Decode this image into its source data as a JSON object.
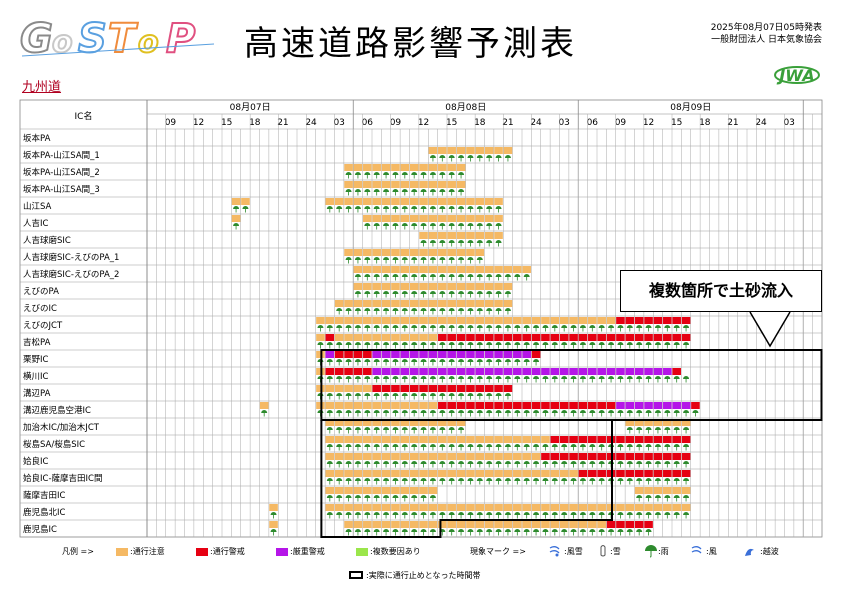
{
  "header": {
    "logo_text": "GoSToP",
    "title": "高速道路影響予測表",
    "issued": "2025年08月07日05時発表",
    "organization": "一般財団法人 日本気象協会",
    "org_logo_text": "JWA",
    "route_name": "九州道"
  },
  "colors": {
    "caution": "#f5b964",
    "warning": "#e60012",
    "severe": "#b515e8",
    "multiple": "#9be64b",
    "grid_line": "#aaaaaa",
    "header_bg": "#ffffff",
    "umbrella": "#2e8b2e"
  },
  "table": {
    "ic_header": "IC名",
    "dates": [
      "08月07日",
      "08月08日",
      "08月09日"
    ],
    "hours": [
      "09",
      "12",
      "15",
      "18",
      "21",
      "24",
      "03",
      "06",
      "09",
      "12",
      "15",
      "18",
      "21",
      "24",
      "03",
      "06",
      "09",
      "12",
      "15",
      "18",
      "21",
      "24",
      "03"
    ],
    "rows": [
      {
        "name": "坂本PA",
        "rain": [],
        "caution": [],
        "warning": [],
        "severe": []
      },
      {
        "name": "坂本PA-山江SA間_1",
        "rain": [
          [
            30,
            38
          ]
        ],
        "caution": [
          [
            30,
            38
          ]
        ],
        "warning": [],
        "severe": []
      },
      {
        "name": "坂本PA-山江SA間_2",
        "rain": [
          [
            21,
            33
          ]
        ],
        "caution": [
          [
            21,
            33
          ]
        ],
        "warning": [],
        "severe": []
      },
      {
        "name": "坂本PA-山江SA間_3",
        "rain": [
          [
            21,
            33
          ]
        ],
        "caution": [
          [
            21,
            33
          ]
        ],
        "warning": [],
        "severe": []
      },
      {
        "name": "山江SA",
        "rain": [
          [
            9,
            10
          ],
          [
            19,
            37
          ]
        ],
        "caution": [
          [
            9,
            10
          ],
          [
            19,
            37
          ]
        ],
        "warning": [],
        "severe": []
      },
      {
        "name": "人吉IC",
        "rain": [
          [
            9,
            9
          ],
          [
            23,
            37
          ]
        ],
        "caution": [
          [
            9,
            9
          ],
          [
            23,
            37
          ]
        ],
        "warning": [],
        "severe": []
      },
      {
        "name": "人吉球磨SIC",
        "rain": [
          [
            29,
            37
          ]
        ],
        "caution": [
          [
            29,
            37
          ]
        ],
        "warning": [],
        "severe": []
      },
      {
        "name": "人吉球磨SIC-えびのPA_1",
        "rain": [
          [
            21,
            35
          ]
        ],
        "caution": [
          [
            21,
            35
          ]
        ],
        "warning": [],
        "severe": []
      },
      {
        "name": "人吉球磨SIC-えびのPA_2",
        "rain": [
          [
            22,
            40
          ]
        ],
        "caution": [
          [
            22,
            40
          ]
        ],
        "warning": [],
        "severe": []
      },
      {
        "name": "えびのPA",
        "rain": [
          [
            22,
            38
          ]
        ],
        "caution": [
          [
            22,
            38
          ]
        ],
        "warning": [],
        "severe": []
      },
      {
        "name": "えびのIC",
        "rain": [
          [
            20,
            38
          ]
        ],
        "caution": [
          [
            20,
            38
          ]
        ],
        "warning": [],
        "severe": []
      },
      {
        "name": "えびのJCT",
        "rain": [
          [
            18,
            57
          ]
        ],
        "caution": [
          [
            18,
            49
          ]
        ],
        "warning": [
          [
            50,
            57
          ]
        ],
        "severe": []
      },
      {
        "name": "吉松PA",
        "rain": [
          [
            18,
            57
          ]
        ],
        "caution": [
          [
            18,
            30
          ]
        ],
        "warning": [
          [
            19,
            19
          ],
          [
            31,
            57
          ]
        ],
        "severe": []
      },
      {
        "name": "栗野IC",
        "rain": [
          [
            18,
            41
          ]
        ],
        "caution": [
          [
            18,
            18
          ]
        ],
        "warning": [
          [
            20,
            23
          ],
          [
            41,
            41
          ]
        ],
        "severe": [
          [
            19,
            19
          ],
          [
            24,
            40
          ]
        ]
      },
      {
        "name": "横川IC",
        "rain": [
          [
            18,
            57
          ]
        ],
        "caution": [
          [
            18,
            18
          ]
        ],
        "warning": [
          [
            19,
            23
          ],
          [
            56,
            56
          ]
        ],
        "severe": [
          [
            24,
            55
          ]
        ]
      },
      {
        "name": "溝辺PA",
        "rain": [
          [
            18,
            38
          ]
        ],
        "caution": [
          [
            18,
            23
          ]
        ],
        "warning": [
          [
            24,
            38
          ]
        ],
        "severe": []
      },
      {
        "name": "溝辺鹿児島空港IC",
        "rain": [
          [
            12,
            12
          ],
          [
            18,
            58
          ]
        ],
        "caution": [
          [
            12,
            12
          ],
          [
            18,
            30
          ]
        ],
        "warning": [
          [
            31,
            49
          ],
          [
            58,
            58
          ]
        ],
        "severe": [
          [
            50,
            57
          ]
        ]
      },
      {
        "name": "加治木IC/加治木JCT",
        "rain": [
          [
            19,
            33
          ],
          [
            51,
            57
          ]
        ],
        "caution": [
          [
            19,
            33
          ],
          [
            51,
            57
          ]
        ],
        "warning": [],
        "severe": []
      },
      {
        "name": "桜島SA/桜島SIC",
        "rain": [
          [
            19,
            57
          ]
        ],
        "caution": [
          [
            19,
            42
          ]
        ],
        "warning": [
          [
            43,
            57
          ]
        ],
        "severe": []
      },
      {
        "name": "姶良IC",
        "rain": [
          [
            19,
            57
          ]
        ],
        "caution": [
          [
            19,
            41
          ]
        ],
        "warning": [
          [
            42,
            57
          ]
        ],
        "severe": []
      },
      {
        "name": "姶良IC-薩摩吉田IC間",
        "rain": [
          [
            19,
            57
          ]
        ],
        "caution": [
          [
            19,
            45
          ]
        ],
        "warning": [
          [
            46,
            57
          ]
        ],
        "severe": []
      },
      {
        "name": "薩摩吉田IC",
        "rain": [
          [
            19,
            30
          ],
          [
            52,
            57
          ]
        ],
        "caution": [
          [
            19,
            30
          ],
          [
            52,
            57
          ]
        ],
        "warning": [],
        "severe": []
      },
      {
        "name": "鹿児島北IC",
        "rain": [
          [
            13,
            13
          ],
          [
            19,
            57
          ]
        ],
        "caution": [
          [
            13,
            13
          ],
          [
            19,
            57
          ]
        ],
        "warning": [],
        "severe": []
      },
      {
        "name": "鹿児島IC",
        "rain": [
          [
            13,
            13
          ],
          [
            21,
            53
          ]
        ],
        "caution": [
          [
            13,
            13
          ],
          [
            21,
            53
          ]
        ],
        "warning": [
          [
            49,
            53
          ]
        ],
        "severe": []
      }
    ]
  },
  "callout": {
    "text": "複数箇所で土砂流入"
  },
  "legend": {
    "label": "凡例 =>",
    "items": [
      {
        "key": "caution",
        "label": ":通行注意"
      },
      {
        "key": "warning",
        "label": ":通行警戒"
      },
      {
        "key": "severe",
        "label": ":厳重警戒"
      },
      {
        "key": "multiple",
        "label": ":複数要因あり"
      }
    ],
    "phenomena_label": "現象マーク =>",
    "phenomena": [
      {
        "icon": "wind-snow-icon",
        "label": ":風雪"
      },
      {
        "icon": "snow-icon",
        "label": ":雪"
      },
      {
        "icon": "rain-icon",
        "label": ":雨"
      },
      {
        "icon": "wind-icon",
        "label": ":風"
      },
      {
        "icon": "wave-icon",
        "label": ":越波"
      }
    ],
    "closure_label": ":実際に通行止めとなった時間帯"
  }
}
